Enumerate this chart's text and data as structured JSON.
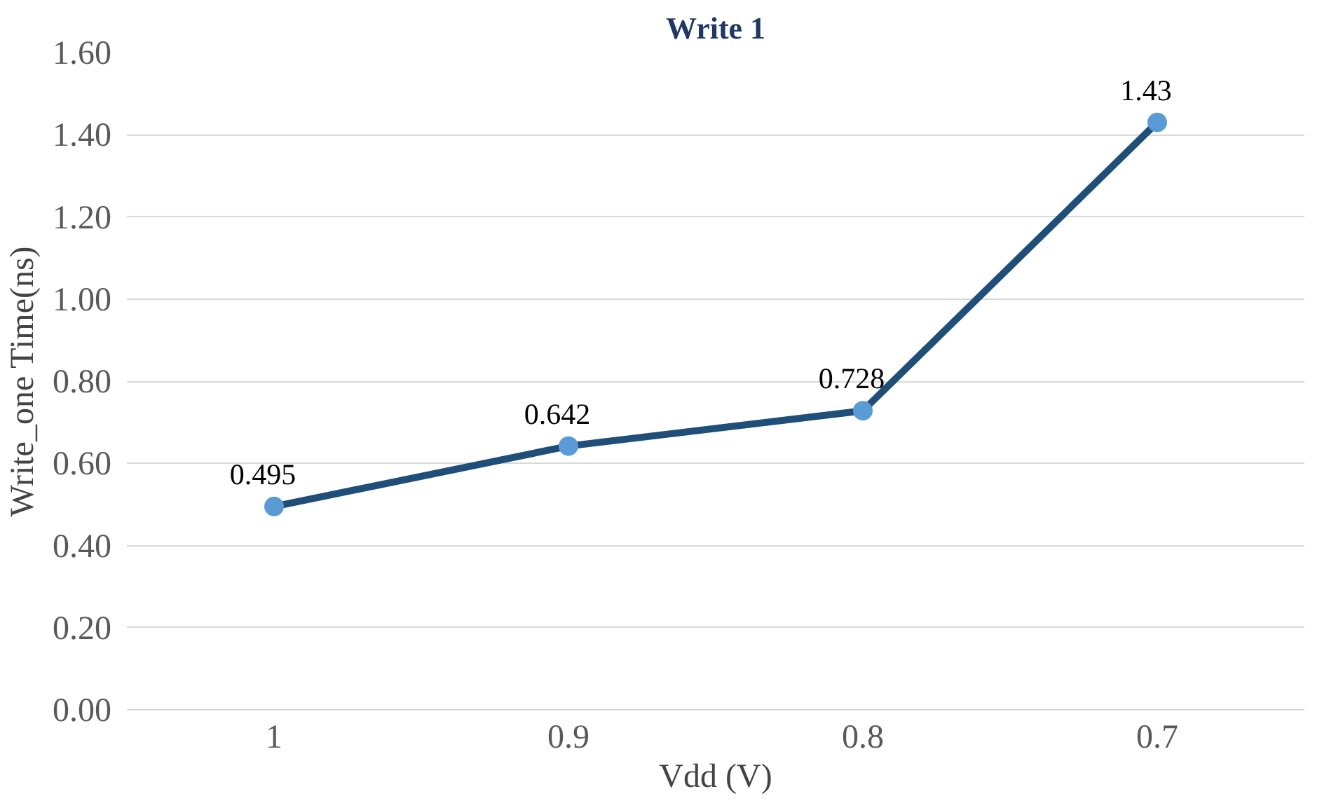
{
  "chart_data": {
    "type": "line",
    "title": "Write 1",
    "xlabel": "Vdd (V)",
    "ylabel": "Write_one Time(ns)",
    "categories": [
      "1",
      "0.9",
      "0.8",
      "0.7"
    ],
    "series": [
      {
        "color": "#1f4e79",
        "values": [
          0.495,
          0.642,
          0.728,
          1.43
        ]
      }
    ],
    "ylim": [
      0,
      1.6
    ],
    "yticks": [
      {
        "value": 0,
        "label": "0.00"
      },
      {
        "value": 0.2,
        "label": "0.20"
      },
      {
        "value": 0.4,
        "label": "0.40"
      },
      {
        "value": 0.6,
        "label": "0.60"
      },
      {
        "value": 0.8,
        "label": "0.80"
      },
      {
        "value": 1.0,
        "label": "1.00"
      },
      {
        "value": 1.2,
        "label": "1.20"
      },
      {
        "value": 1.4,
        "label": "1.40"
      },
      {
        "value": 1.6,
        "label": "1.60"
      }
    ],
    "grid": "y",
    "marker": "circle",
    "line_style": "solid",
    "data_labels": true
  }
}
